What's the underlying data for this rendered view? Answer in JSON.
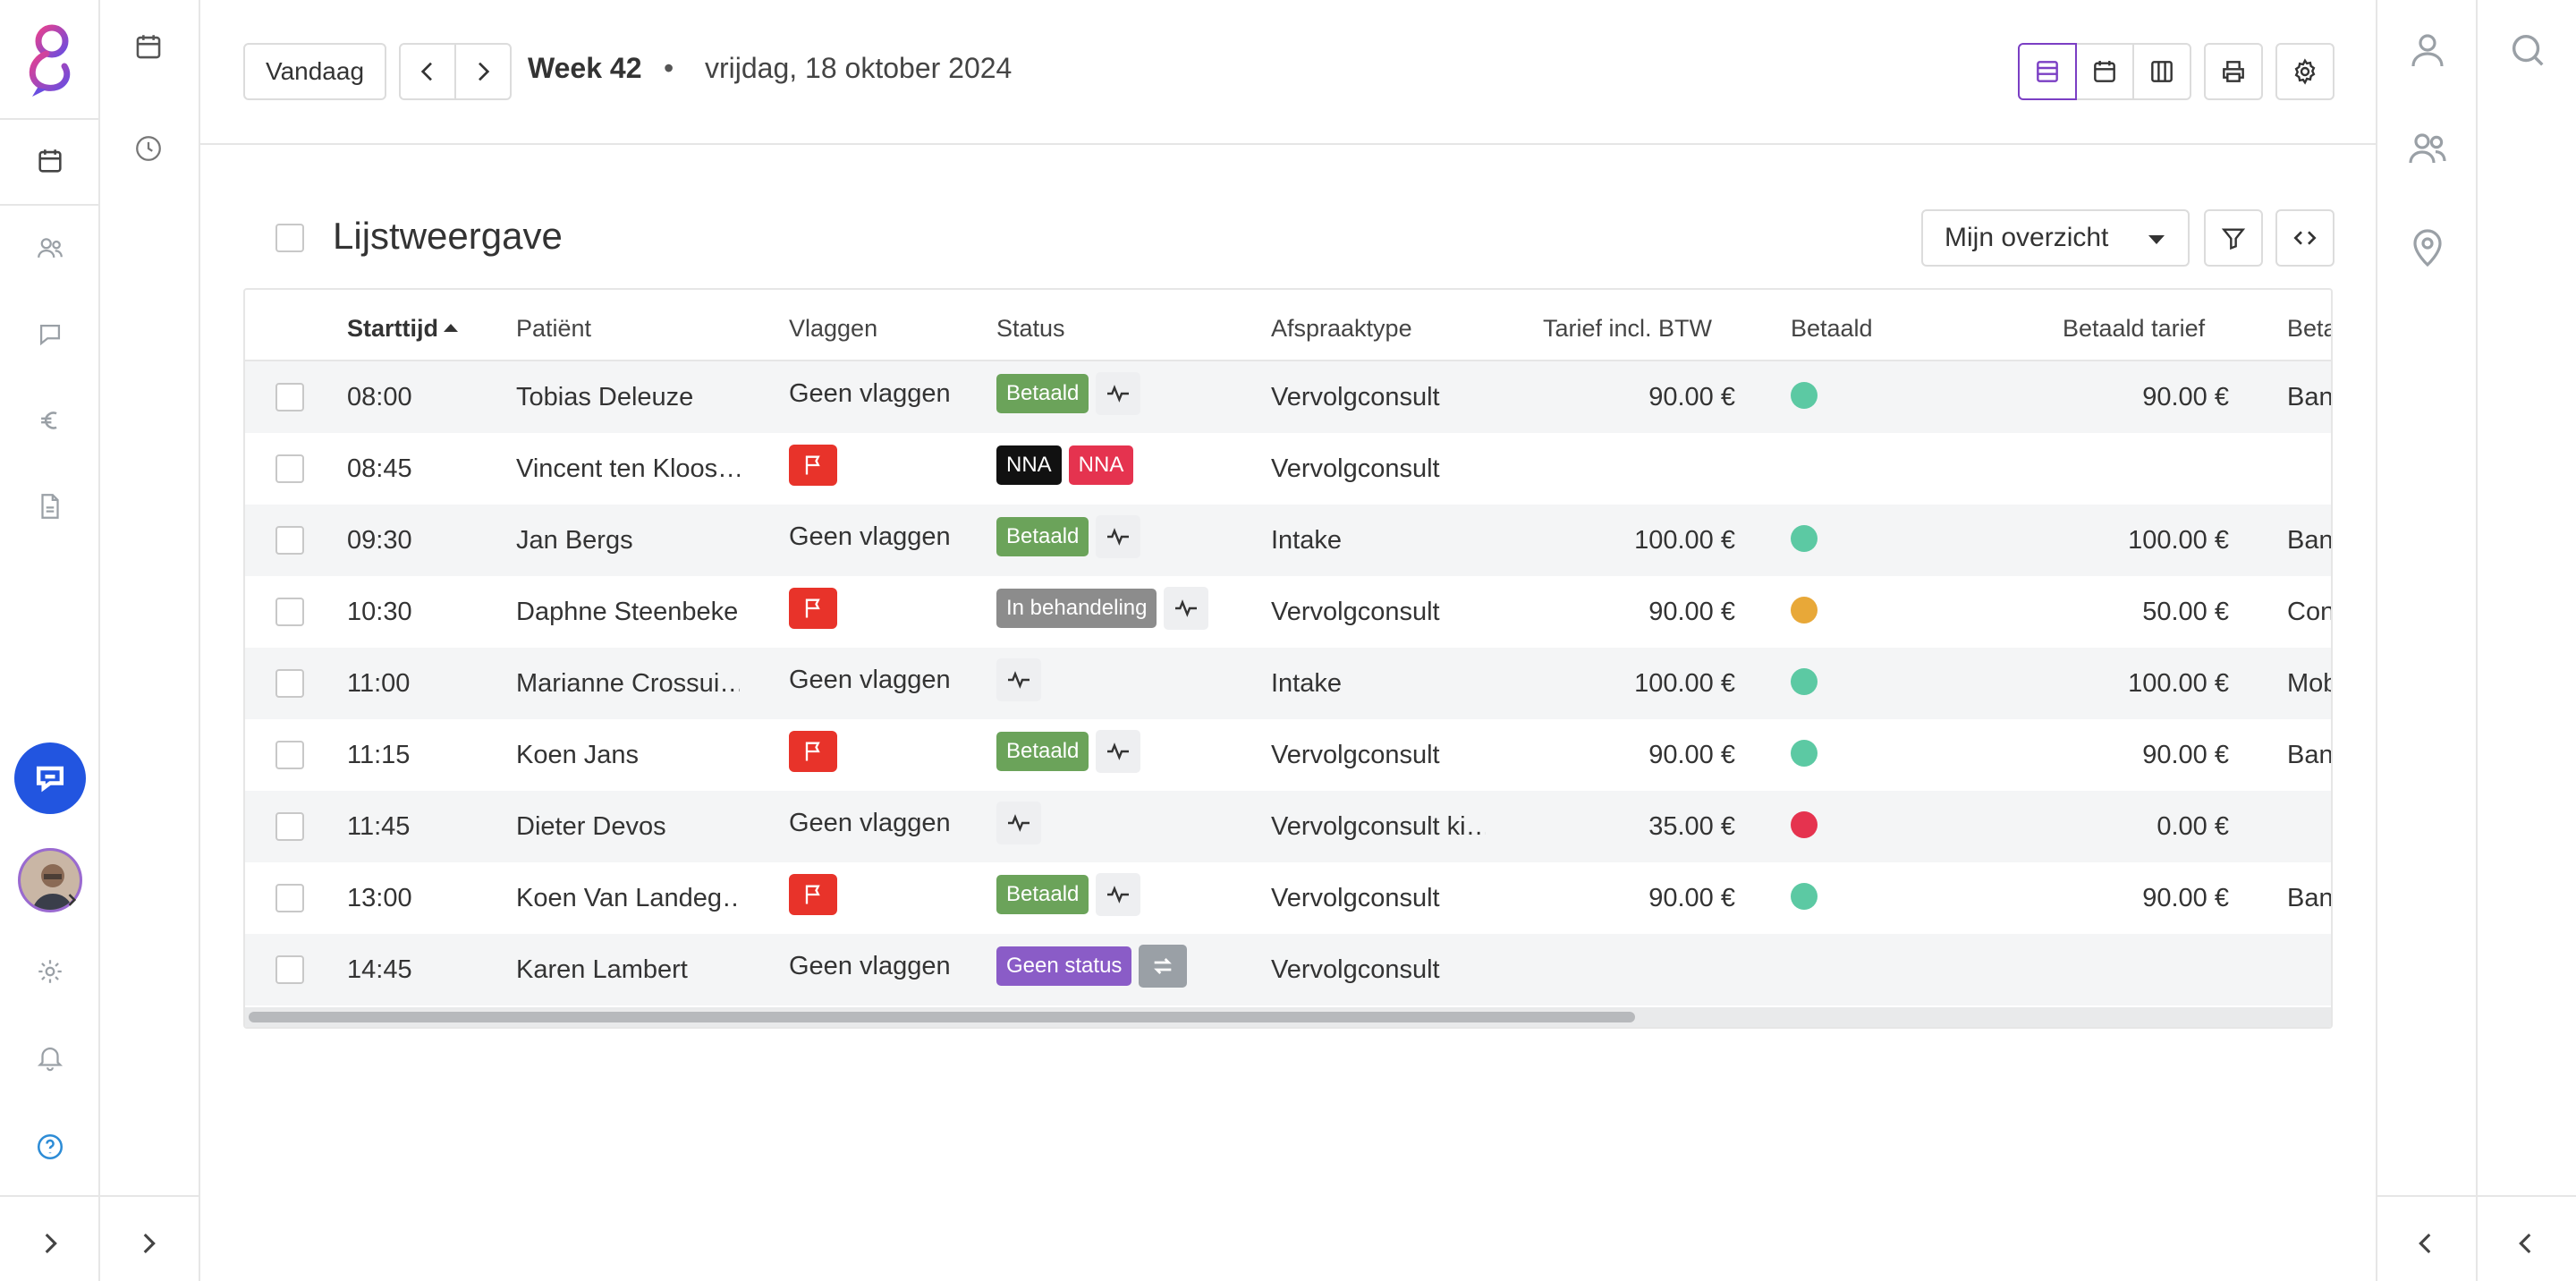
{
  "header": {
    "today_label": "Vandaag",
    "week_label": "Week 42",
    "separator": "•",
    "date_label": "vrijdag, 18 oktober 2024"
  },
  "list": {
    "title": "Lijstweergave",
    "view_select": "Mijn overzicht"
  },
  "table": {
    "columns": [
      "Starttijd",
      "Patiënt",
      "Vlaggen",
      "Status",
      "Afspraaktype",
      "Tarief incl. BTW",
      "Betaald",
      "Betaald tarief",
      "Beta"
    ],
    "rows": [
      {
        "time": "08:00",
        "patient": "Tobias Deleuze",
        "flag": "Geen vlaggen",
        "badge": "Betaald",
        "type": "Vervolgconsult",
        "rate": "90.00 €",
        "paid_color": "#5cc9a3",
        "paid_rate": "90.00 €",
        "method": "Banl"
      },
      {
        "time": "08:45",
        "patient": "Vincent ten Kloos…",
        "flag": "",
        "badge": "NNA",
        "badge2": "NNA",
        "type": "Vervolgconsult",
        "rate": "",
        "paid_color": "",
        "paid_rate": "",
        "method": ""
      },
      {
        "time": "09:30",
        "patient": "Jan Bergs",
        "flag": "Geen vlaggen",
        "badge": "Betaald",
        "type": "Intake",
        "rate": "100.00 €",
        "paid_color": "#5cc9a3",
        "paid_rate": "100.00 €",
        "method": "Banl"
      },
      {
        "time": "10:30",
        "patient": "Daphne Steenbeke",
        "flag": "",
        "badge": "In behandeling",
        "type": "Vervolgconsult",
        "rate": "90.00 €",
        "paid_color": "#e8a838",
        "paid_rate": "50.00 €",
        "method": "Con"
      },
      {
        "time": "11:00",
        "patient": "Marianne Crossui…",
        "flag": "Geen vlaggen",
        "badge": "",
        "type": "Intake",
        "rate": "100.00 €",
        "paid_color": "#5cc9a3",
        "paid_rate": "100.00 €",
        "method": "Mob"
      },
      {
        "time": "11:15",
        "patient": "Koen Jans",
        "flag": "",
        "badge": "Betaald",
        "type": "Vervolgconsult",
        "rate": "90.00 €",
        "paid_color": "#5cc9a3",
        "paid_rate": "90.00 €",
        "method": "Banl"
      },
      {
        "time": "11:45",
        "patient": "Dieter Devos",
        "flag": "Geen vlaggen",
        "badge": "",
        "type": "Vervolgconsult ki…",
        "rate": "35.00 €",
        "paid_color": "#e5334f",
        "paid_rate": "0.00 €",
        "method": ""
      },
      {
        "time": "13:00",
        "patient": "Koen Van Landeg…",
        "flag": "",
        "badge": "Betaald",
        "type": "Vervolgconsult",
        "rate": "90.00 €",
        "paid_color": "#5cc9a3",
        "paid_rate": "90.00 €",
        "method": "Banl"
      },
      {
        "time": "14:45",
        "patient": "Karen Lambert",
        "flag": "Geen vlaggen",
        "badge": "Geen status",
        "type": "Vervolgconsult",
        "rate": "",
        "paid_color": "",
        "paid_rate": "",
        "method": ""
      }
    ]
  },
  "colors": {
    "accent": "#7b3fc4",
    "betaald": "#6ba35a",
    "nna_black": "#111111",
    "nna_red": "#e5334f",
    "in_behandeling": "#8c8c8c",
    "geen_status": "#8a5cc7",
    "flag_red": "#e8332a"
  }
}
